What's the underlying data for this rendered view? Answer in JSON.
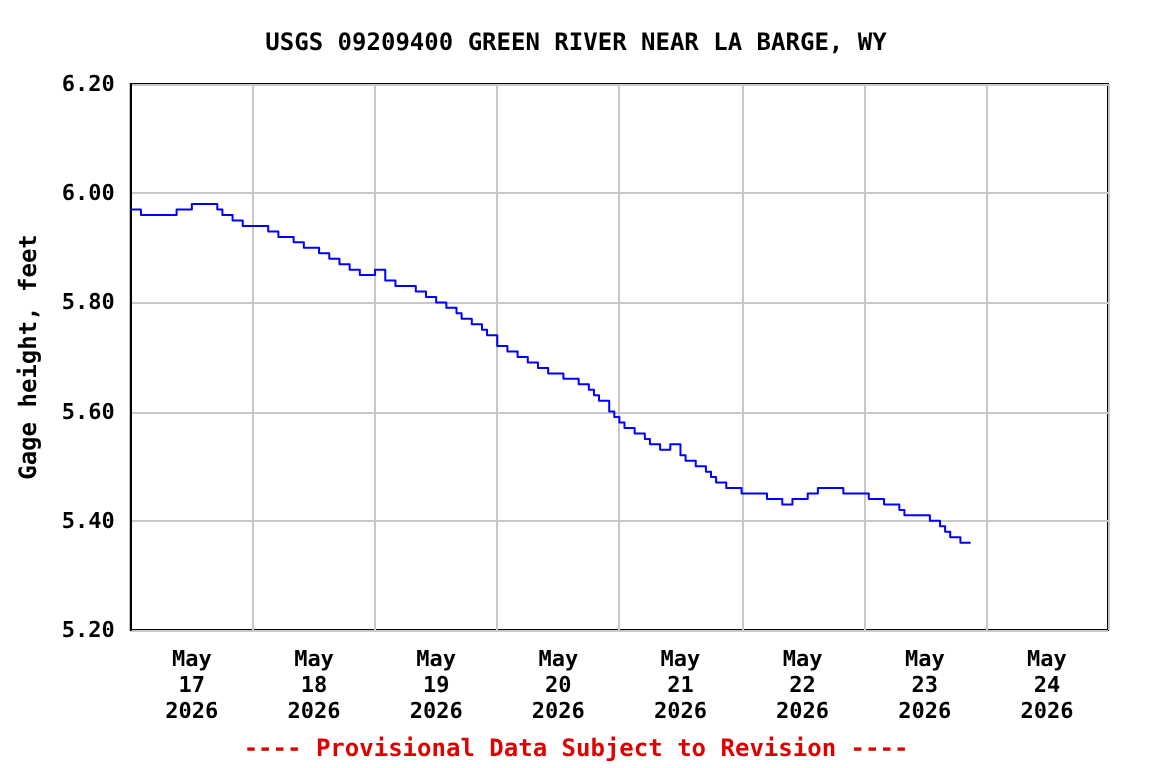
{
  "chart_data": {
    "type": "step",
    "title": "USGS 09209400 GREEN RIVER NEAR LA BARGE, WY",
    "ylabel": "Gage height, feet",
    "annotations": [
      "---- Provisional Data Subject to Revision ----"
    ],
    "x": [
      "2026-05-17T00:00",
      "2026-05-17T02:00",
      "2026-05-17T09:00",
      "2026-05-17T12:00",
      "2026-05-17T17:00",
      "2026-05-17T18:00",
      "2026-05-17T20:00",
      "2026-05-17T22:00",
      "2026-05-18T03:00",
      "2026-05-18T05:00",
      "2026-05-18T08:00",
      "2026-05-18T10:00",
      "2026-05-18T13:00",
      "2026-05-18T15:00",
      "2026-05-18T17:00",
      "2026-05-18T19:00",
      "2026-05-18T21:00",
      "2026-05-19T00:00",
      "2026-05-19T02:00",
      "2026-05-19T04:00",
      "2026-05-19T08:00",
      "2026-05-19T10:00",
      "2026-05-19T12:00",
      "2026-05-19T14:00",
      "2026-05-19T16:00",
      "2026-05-19T17:00",
      "2026-05-19T19:00",
      "2026-05-19T21:00",
      "2026-05-19T22:00",
      "2026-05-20T00:00",
      "2026-05-20T02:00",
      "2026-05-20T04:00",
      "2026-05-20T06:00",
      "2026-05-20T08:00",
      "2026-05-20T10:00",
      "2026-05-20T13:00",
      "2026-05-20T16:00",
      "2026-05-20T18:00",
      "2026-05-20T19:00",
      "2026-05-20T20:00",
      "2026-05-20T22:00",
      "2026-05-20T23:00",
      "2026-05-21T00:00",
      "2026-05-21T01:00",
      "2026-05-21T03:00",
      "2026-05-21T05:00",
      "2026-05-21T06:00",
      "2026-05-21T08:00",
      "2026-05-21T10:00",
      "2026-05-21T12:00",
      "2026-05-21T13:00",
      "2026-05-21T15:00",
      "2026-05-21T17:00",
      "2026-05-21T18:00",
      "2026-05-21T19:00",
      "2026-05-21T21:00",
      "2026-05-22T00:00",
      "2026-05-22T05:00",
      "2026-05-22T08:00",
      "2026-05-22T10:00",
      "2026-05-22T13:00",
      "2026-05-22T15:00",
      "2026-05-22T20:00",
      "2026-05-23T01:00",
      "2026-05-23T04:00",
      "2026-05-23T07:00",
      "2026-05-23T08:00",
      "2026-05-23T13:00",
      "2026-05-23T15:00",
      "2026-05-23T16:00",
      "2026-05-23T17:00",
      "2026-05-23T19:00",
      "2026-05-23T21:00"
    ],
    "series": [
      {
        "color": "#0000ff",
        "values": [
          5.97,
          5.96,
          5.97,
          5.98,
          5.97,
          5.96,
          5.95,
          5.94,
          5.93,
          5.92,
          5.91,
          5.9,
          5.89,
          5.88,
          5.87,
          5.86,
          5.85,
          5.86,
          5.84,
          5.83,
          5.82,
          5.81,
          5.8,
          5.79,
          5.78,
          5.77,
          5.76,
          5.75,
          5.74,
          5.72,
          5.71,
          5.7,
          5.69,
          5.68,
          5.67,
          5.66,
          5.65,
          5.64,
          5.63,
          5.62,
          5.6,
          5.59,
          5.58,
          5.57,
          5.56,
          5.55,
          5.54,
          5.53,
          5.54,
          5.52,
          5.51,
          5.5,
          5.49,
          5.48,
          5.47,
          5.46,
          5.45,
          5.44,
          5.43,
          5.44,
          5.45,
          5.46,
          5.45,
          5.44,
          5.43,
          5.42,
          5.41,
          5.4,
          5.39,
          5.38,
          5.37,
          5.36,
          5.36
        ]
      }
    ],
    "xlim": [
      "2026-05-17T00:00",
      "2026-05-25T00:00"
    ],
    "xticks": [
      {
        "value": "2026-05-17T00:00",
        "label": null
      },
      {
        "value": "2026-05-17T12:00",
        "label": "May\n17\n2026"
      },
      {
        "value": "2026-05-18T00:00",
        "label": null
      },
      {
        "value": "2026-05-18T12:00",
        "label": "May\n18\n2026"
      },
      {
        "value": "2026-05-19T00:00",
        "label": null
      },
      {
        "value": "2026-05-19T12:00",
        "label": "May\n19\n2026"
      },
      {
        "value": "2026-05-20T00:00",
        "label": null
      },
      {
        "value": "2026-05-20T12:00",
        "label": "May\n20\n2026"
      },
      {
        "value": "2026-05-21T00:00",
        "label": null
      },
      {
        "value": "2026-05-21T12:00",
        "label": "May\n21\n2026"
      },
      {
        "value": "2026-05-22T00:00",
        "label": null
      },
      {
        "value": "2026-05-22T12:00",
        "label": "May\n22\n2026"
      },
      {
        "value": "2026-05-23T00:00",
        "label": null
      },
      {
        "value": "2026-05-23T12:00",
        "label": "May\n23\n2026"
      },
      {
        "value": "2026-05-24T00:00",
        "label": null
      },
      {
        "value": "2026-05-24T12:00",
        "label": "May\n24\n2026"
      },
      {
        "value": "2026-05-25T00:00",
        "label": null
      }
    ],
    "ylim": [
      5.2,
      6.2
    ],
    "yticks": [
      {
        "value": 5.2,
        "label": "5.20"
      },
      {
        "value": 5.4,
        "label": "5.40"
      },
      {
        "value": 5.6,
        "label": "5.60"
      },
      {
        "value": 5.8,
        "label": "5.80"
      },
      {
        "value": 6.0,
        "label": "6.00"
      },
      {
        "value": 6.2,
        "label": "6.20"
      }
    ],
    "grid": true
  }
}
